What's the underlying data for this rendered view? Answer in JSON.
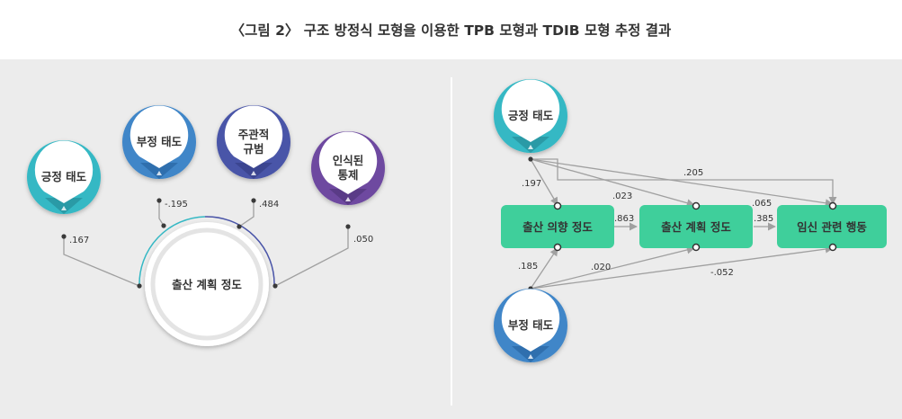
{
  "title": "〈그림 2〉 구조 방정식 모형을 이용한 TPB 모형과 TDIB 모형 추정 결과",
  "left_model": {
    "nodes": {
      "positive_attitude": "긍정 태도",
      "negative_attitude": "부정 태도",
      "subjective_norm_line1": "주관적",
      "subjective_norm_line2": "규범",
      "perceived_control_line1": "인식된",
      "perceived_control_line2": "통제",
      "planning_degree": "출산 계획 정도"
    },
    "coefficients": {
      "positive_attitude": ".167",
      "negative_attitude": "-.195",
      "subjective_norm": ".484",
      "perceived_control": ".050"
    }
  },
  "right_model": {
    "nodes": {
      "positive_attitude": "긍정 태도",
      "negative_attitude": "부정 태도",
      "intention_degree": "출산 의향 정도",
      "planning_degree": "출산 계획 정도",
      "pregnancy_behavior": "임신 관련 행동"
    },
    "coefficients": {
      "pos_to_behavior": ".205",
      "pos_to_intention": ".197",
      "pos_to_planning": ".023",
      "planning_to_behavior_top": ".065",
      "intention_to_planning": ".863",
      "planning_to_behavior": ".385",
      "neg_to_intention": ".185",
      "neg_to_planning": ".020",
      "neg_to_behavior": "-.052"
    }
  },
  "colors": {
    "teal": "#35b8c4",
    "blue": "#3f86c8",
    "indigo": "#4a55a8",
    "purple": "#6e4aa0",
    "green_box": "#3fcf9b",
    "line": "#a0a0a0",
    "dot": "#3a3a3a"
  }
}
